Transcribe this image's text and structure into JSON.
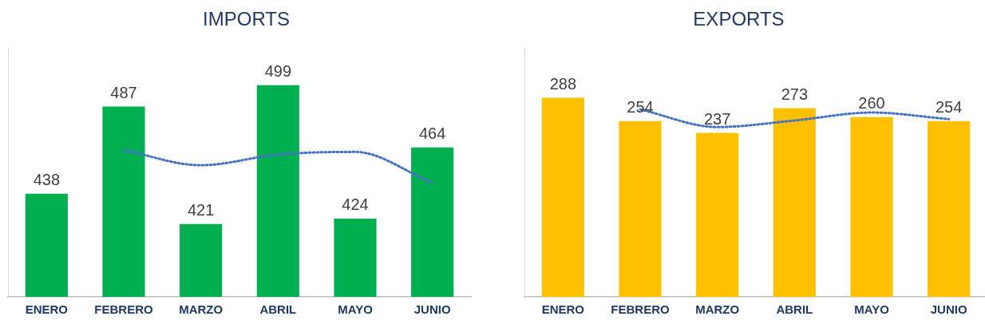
{
  "chart_data": [
    {
      "type": "bar",
      "title": "IMPORTS",
      "categories": [
        "ENERO",
        "FEBRERO",
        "MARZO",
        "ABRIL",
        "MAYO",
        "JUNIO"
      ],
      "ylim": [
        380,
        520
      ],
      "tick_labels": "x",
      "grid": false,
      "legend": false,
      "series": [
        {
          "color": "#00b050",
          "values": [
            438,
            487,
            421,
            499,
            424,
            464
          ],
          "value_labels": [
            "438",
            "487",
            "421",
            "499",
            "424",
            "464"
          ]
        },
        {
          "type": "line",
          "color": "#4472c4",
          "values": [
            null,
            462.5,
            454,
            460,
            461.5,
            444
          ],
          "line_style": "dotted",
          "marker": "none"
        }
      ]
    },
    {
      "type": "bar",
      "title": "EXPORTS",
      "categories": [
        "ENERO",
        "FEBRERO",
        "MARZO",
        "ABRIL",
        "MAYO",
        "JUNIO"
      ],
      "ylim": [
        0,
        360
      ],
      "tick_labels": "x",
      "grid": false,
      "legend": false,
      "series": [
        {
          "color": "#ffc000",
          "values": [
            288,
            254,
            237,
            273,
            260,
            254
          ],
          "value_labels": [
            "288",
            "254",
            "237",
            "273",
            "260",
            "254"
          ]
        },
        {
          "type": "line",
          "color": "#4472c4",
          "values": [
            null,
            271,
            245.5,
            255,
            266.5,
            257
          ],
          "line_style": "dotted",
          "marker": "none"
        }
      ]
    }
  ]
}
